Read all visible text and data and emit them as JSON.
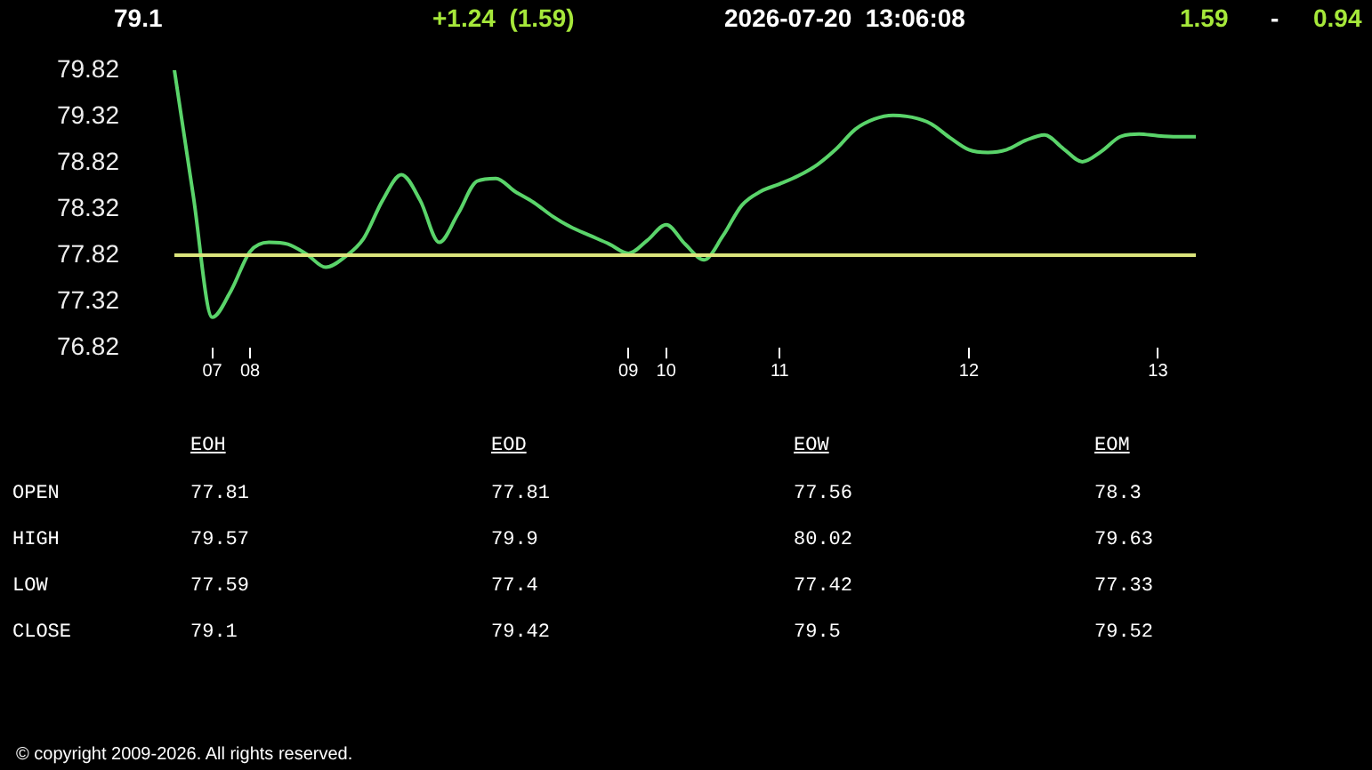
{
  "chart_data": {
    "type": "line",
    "categories": [
      null,
      null,
      "07",
      null,
      "08",
      null,
      null,
      null,
      null,
      null,
      null,
      null,
      null,
      null,
      null,
      null,
      null,
      null,
      null,
      null,
      null,
      null,
      null,
      null,
      "09",
      null,
      "10",
      null,
      null,
      null,
      null,
      null,
      "11",
      null,
      null,
      null,
      null,
      null,
      null,
      null,
      null,
      null,
      "12",
      null,
      null,
      null,
      null,
      null,
      null,
      null,
      null,
      null,
      "13",
      null,
      null
    ],
    "series": [
      {
        "color": "#5ad46a",
        "values": [
          79.82,
          78.46,
          77.15,
          77.44,
          77.86,
          77.96,
          77.94,
          77.83,
          77.69,
          77.8,
          78.0,
          78.41,
          78.69,
          78.41,
          77.96,
          78.27,
          78.62,
          78.65,
          78.51,
          78.39,
          78.24,
          78.12,
          78.03,
          77.94,
          77.84,
          77.98,
          78.15,
          77.94,
          77.77,
          78.03,
          78.36,
          78.51,
          78.59,
          78.68,
          78.8,
          78.97,
          79.18,
          79.29,
          79.33,
          79.31,
          79.24,
          79.09,
          78.96,
          78.93,
          78.96,
          79.06,
          79.12,
          78.97,
          78.83,
          78.94,
          79.1,
          79.13,
          79.11,
          79.1,
          79.1
        ]
      }
    ],
    "ylim": [
      76.82,
      79.82
    ],
    "yticks": [
      76.82,
      77.32,
      77.82,
      78.32,
      78.82,
      79.32,
      79.82
    ],
    "ref_lines": [
      {
        "axis": "y",
        "value": 77.82,
        "color": "#dbe47c"
      }
    ],
    "marker": "none",
    "legend": false,
    "grid": false,
    "annotations": [
      "79.1",
      "+1.24  (1.59)",
      "2026-07-20  13:06:08",
      "1.59",
      "-",
      "0.94",
      "EOH",
      "EOD",
      "EOW",
      "EOM",
      "OPEN",
      "77.81",
      "77.81",
      "77.56",
      "78.3",
      "HIGH",
      "79.57",
      "79.9",
      "80.02",
      "79.63",
      "LOW",
      "77.59",
      "77.4",
      "77.42",
      "77.33",
      "CLOSE",
      "79.1",
      "79.42",
      "79.5",
      "79.52",
      "© copyright 2009-2026. All rights reserved."
    ]
  }
}
